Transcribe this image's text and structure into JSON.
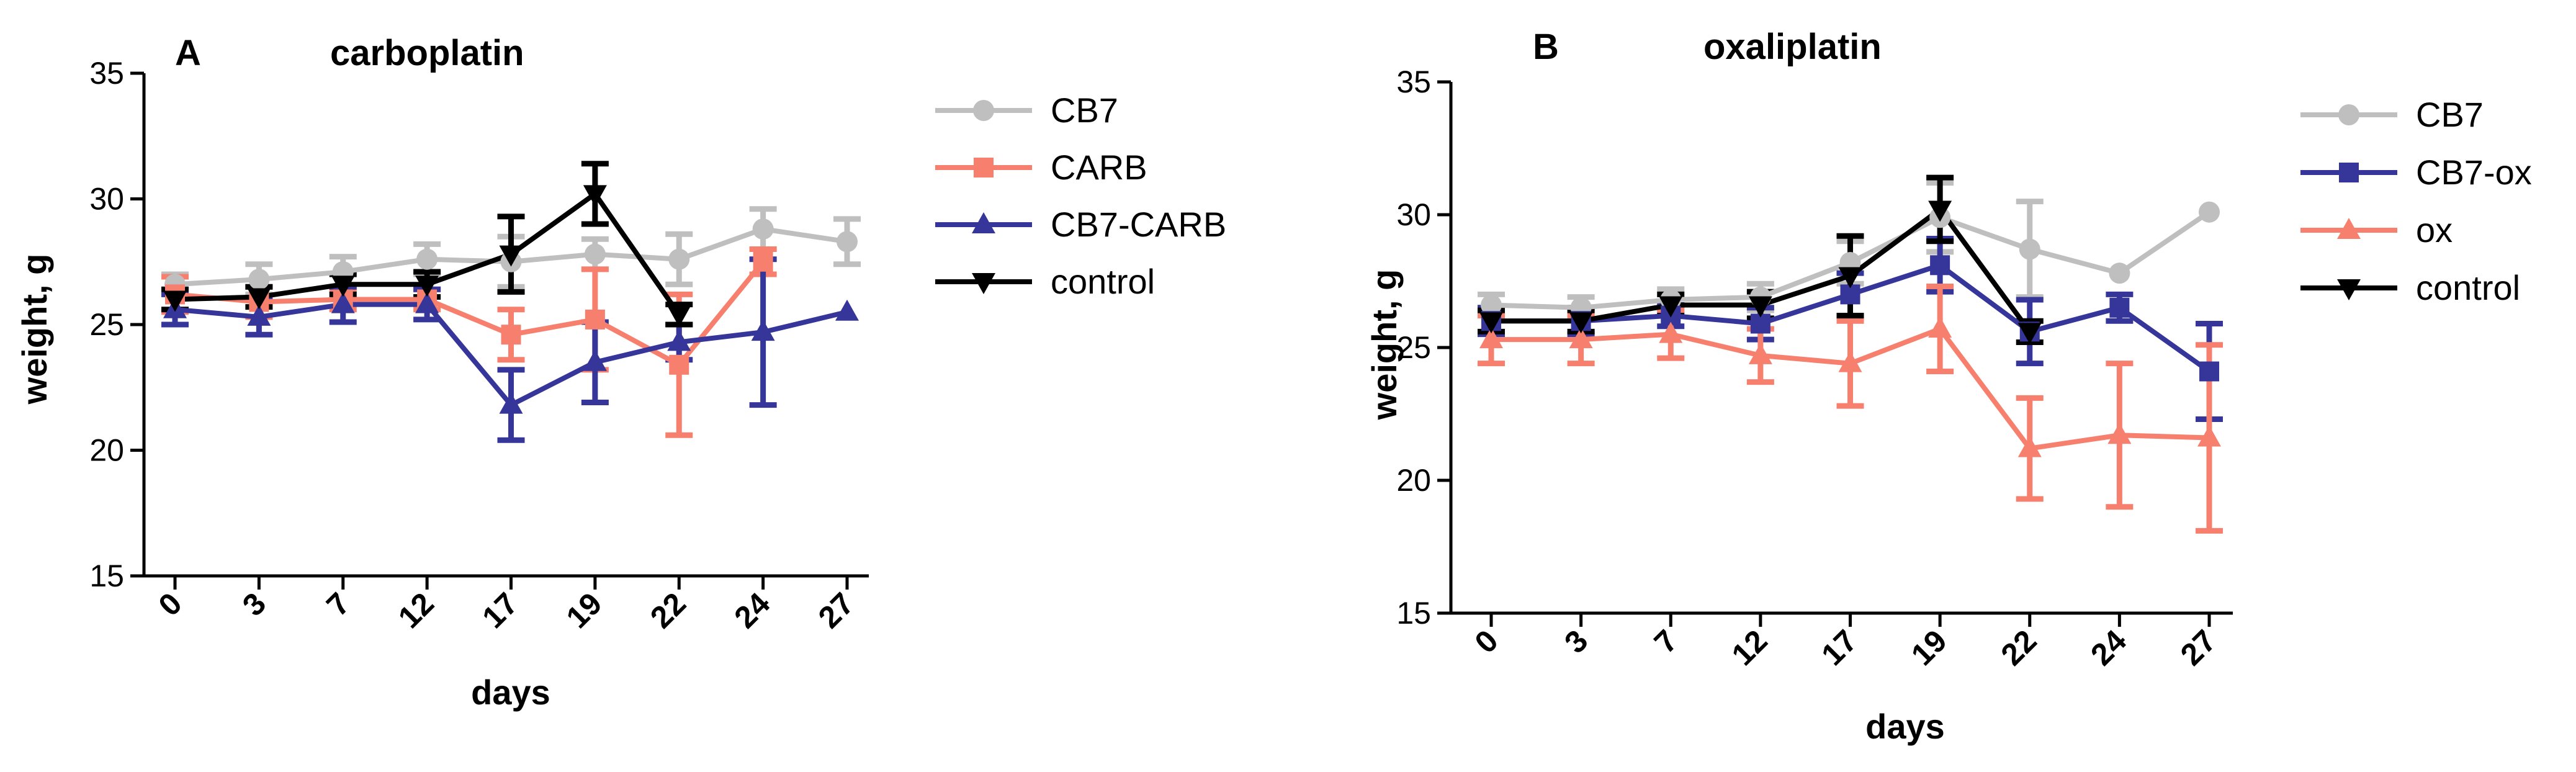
{
  "colors": {
    "gray": "#BFBFBF",
    "salmon": "#F77F6E",
    "navy": "#35359A",
    "black": "#000000"
  },
  "chart_data": [
    {
      "type": "line",
      "panel": "A",
      "title": "carboplatin",
      "xlabel": "days",
      "ylabel": "weight, g",
      "ylim": [
        15,
        35
      ],
      "yticks": [
        15,
        20,
        25,
        30,
        35
      ],
      "categories": [
        "0",
        "3",
        "7",
        "12",
        "17",
        "19",
        "22",
        "24",
        "27"
      ],
      "legend_position": "right",
      "series": [
        {
          "name": "CB7",
          "marker": "circle",
          "color": "gray",
          "values": [
            26.6,
            26.8,
            27.1,
            27.6,
            27.5,
            27.8,
            27.6,
            28.8,
            28.3
          ],
          "errors": [
            0.4,
            0.6,
            0.6,
            0.6,
            1.0,
            0.6,
            1.0,
            0.8,
            0.9
          ]
        },
        {
          "name": "CARB",
          "marker": "square",
          "color": "salmon",
          "values": [
            26.2,
            25.9,
            26.0,
            26.0,
            24.6,
            25.2,
            23.4,
            27.5,
            null
          ],
          "errors": [
            0.7,
            0.6,
            0.4,
            0.4,
            1.0,
            2.0,
            2.8,
            0.5,
            null
          ]
        },
        {
          "name": "CB7-CARB",
          "marker": "triangle-up",
          "color": "navy",
          "values": [
            25.6,
            25.3,
            25.8,
            25.8,
            21.8,
            23.5,
            24.3,
            24.7,
            25.5
          ],
          "errors": [
            0.6,
            0.7,
            0.7,
            0.6,
            1.4,
            1.6,
            0.7,
            2.9,
            0
          ]
        },
        {
          "name": "control",
          "marker": "triangle-down",
          "color": "black",
          "values": [
            26.0,
            26.1,
            26.6,
            26.6,
            27.8,
            30.2,
            25.4,
            null,
            null
          ],
          "errors": [
            0.4,
            0.4,
            0.4,
            0.5,
            1.5,
            1.2,
            0.4,
            null,
            null
          ]
        }
      ]
    },
    {
      "type": "line",
      "panel": "B",
      "title": "oxaliplatin",
      "xlabel": "days",
      "ylabel": "weight, g",
      "ylim": [
        15,
        35
      ],
      "yticks": [
        15,
        20,
        25,
        30,
        35
      ],
      "categories": [
        "0",
        "3",
        "7",
        "12",
        "17",
        "19",
        "22",
        "24",
        "27"
      ],
      "legend_position": "right",
      "series": [
        {
          "name": "CB7",
          "marker": "circle",
          "color": "gray",
          "values": [
            26.6,
            26.5,
            26.8,
            26.9,
            28.2,
            29.9,
            28.7,
            27.8,
            30.1
          ],
          "errors": [
            0.4,
            0.4,
            0.4,
            0.5,
            0.8,
            1.3,
            1.8,
            0,
            0
          ]
        },
        {
          "name": "CB7-ox",
          "marker": "square",
          "color": "navy",
          "values": [
            26.0,
            26.0,
            26.2,
            25.9,
            27.0,
            28.1,
            25.6,
            26.5,
            24.1
          ],
          "errors": [
            0.5,
            0.5,
            0.4,
            0.6,
            0.8,
            1.0,
            1.2,
            0.5,
            1.8
          ]
        },
        {
          "name": "ox",
          "marker": "triangle-up",
          "color": "salmon",
          "values": [
            25.3,
            25.3,
            25.5,
            24.7,
            24.4,
            25.7,
            21.2,
            21.7,
            21.6
          ],
          "errors": [
            0.9,
            0.9,
            0.9,
            1.0,
            1.6,
            1.6,
            1.9,
            2.7,
            3.5
          ]
        },
        {
          "name": "control",
          "marker": "triangle-down",
          "color": "black",
          "values": [
            26.0,
            26.0,
            26.6,
            26.6,
            27.7,
            30.2,
            25.6,
            null,
            null
          ],
          "errors": [
            0.4,
            0.4,
            0.4,
            0.5,
            1.5,
            1.2,
            0.4,
            null,
            null
          ]
        }
      ]
    }
  ]
}
